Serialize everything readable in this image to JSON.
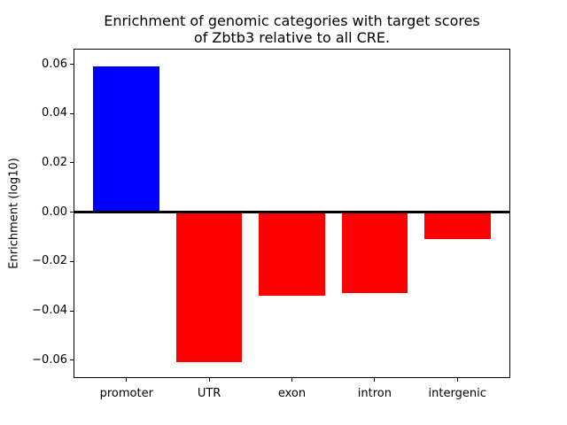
{
  "figure": {
    "title_line1": "Enrichment of genomic categories with target scores",
    "title_line2": "of Zbtb3 relative to all CRE.",
    "ylabel": "Enrichment (log10)"
  },
  "chart_data": {
    "type": "bar",
    "title": "Enrichment of genomic categories with target scores\nof Zbtb3 relative to all CRE.",
    "xlabel": "",
    "ylabel": "Enrichment (log10)",
    "categories": [
      "promoter",
      "UTR",
      "exon",
      "intron",
      "intergenic"
    ],
    "values": [
      0.059,
      -0.061,
      -0.034,
      -0.033,
      -0.011
    ],
    "bar_colors": [
      "#0000ff",
      "#ff0000",
      "#ff0000",
      "#ff0000",
      "#ff0000"
    ],
    "positive_color": "#0000ff",
    "negative_color": "#ff0000",
    "bar_width": 0.8,
    "xlim": [
      -0.64,
      4.64
    ],
    "ylim": [
      -0.0673,
      0.0663
    ],
    "yticks": [
      0.06,
      0.04,
      0.02,
      0.0,
      -0.02,
      -0.04,
      -0.06
    ],
    "ytick_labels": [
      "0.06",
      "0.04",
      "0.02",
      "0.00",
      "−0.02",
      "−0.04",
      "−0.06"
    ],
    "zero_line": true,
    "grid": false,
    "legend": null,
    "axis_color": "#000000",
    "background_color": "#ffffff"
  }
}
